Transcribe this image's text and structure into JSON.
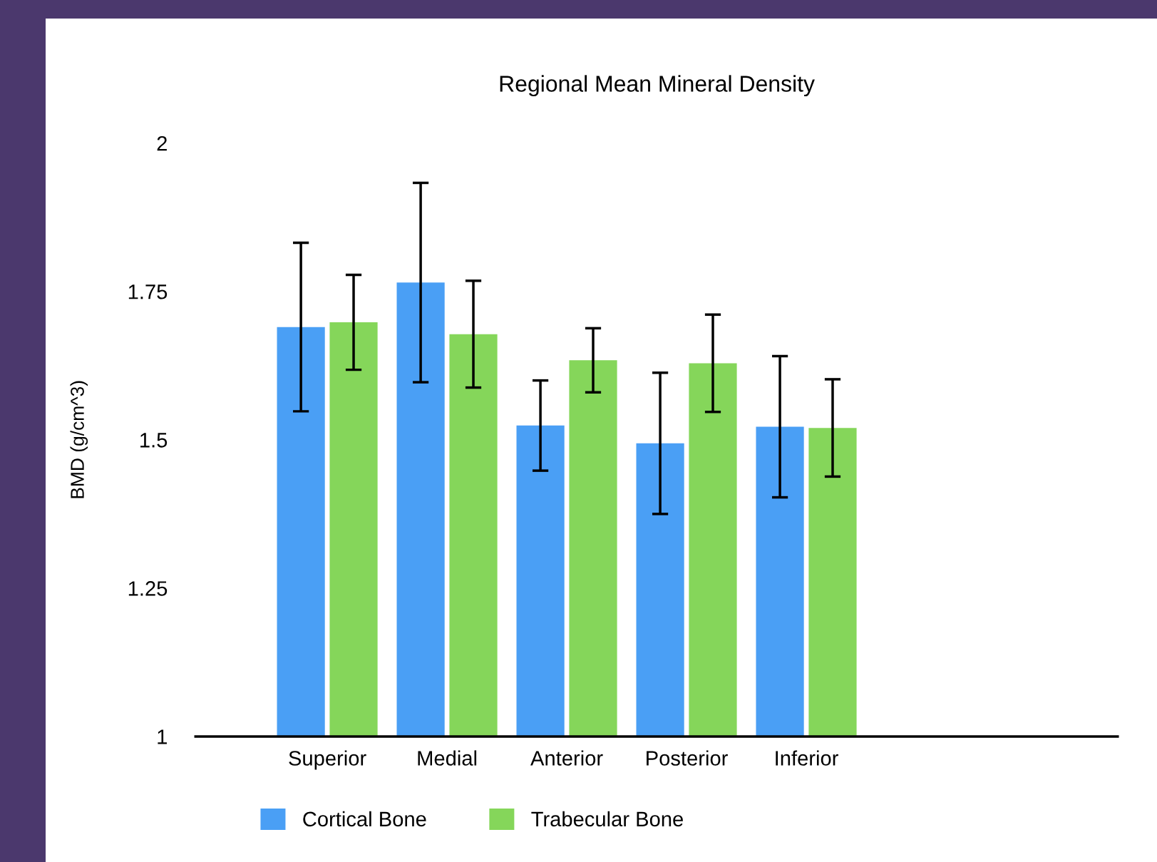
{
  "chart_data": {
    "type": "bar",
    "title": "Regional Mean Mineral Density",
    "ylabel": "BMD (g/cm^3)",
    "categories": [
      "Superior",
      "Medial",
      "Anterior",
      "Posterior",
      "Inferior"
    ],
    "series": [
      {
        "name": "Cortical Bone",
        "color": "#4a9ff5",
        "values": [
          1.69,
          1.765,
          1.524,
          1.494,
          1.522
        ],
        "errors": [
          0.142,
          0.168,
          0.076,
          0.119,
          0.119
        ]
      },
      {
        "name": "Trabecular Bone",
        "color": "#85d65a",
        "values": [
          1.698,
          1.678,
          1.634,
          1.629,
          1.52
        ],
        "errors": [
          0.08,
          0.09,
          0.054,
          0.082,
          0.082
        ]
      }
    ],
    "ylim": [
      1,
      2
    ],
    "yticks": [
      1,
      1.25,
      1.5,
      1.75,
      2
    ],
    "grid": false,
    "legend": "bottom"
  }
}
